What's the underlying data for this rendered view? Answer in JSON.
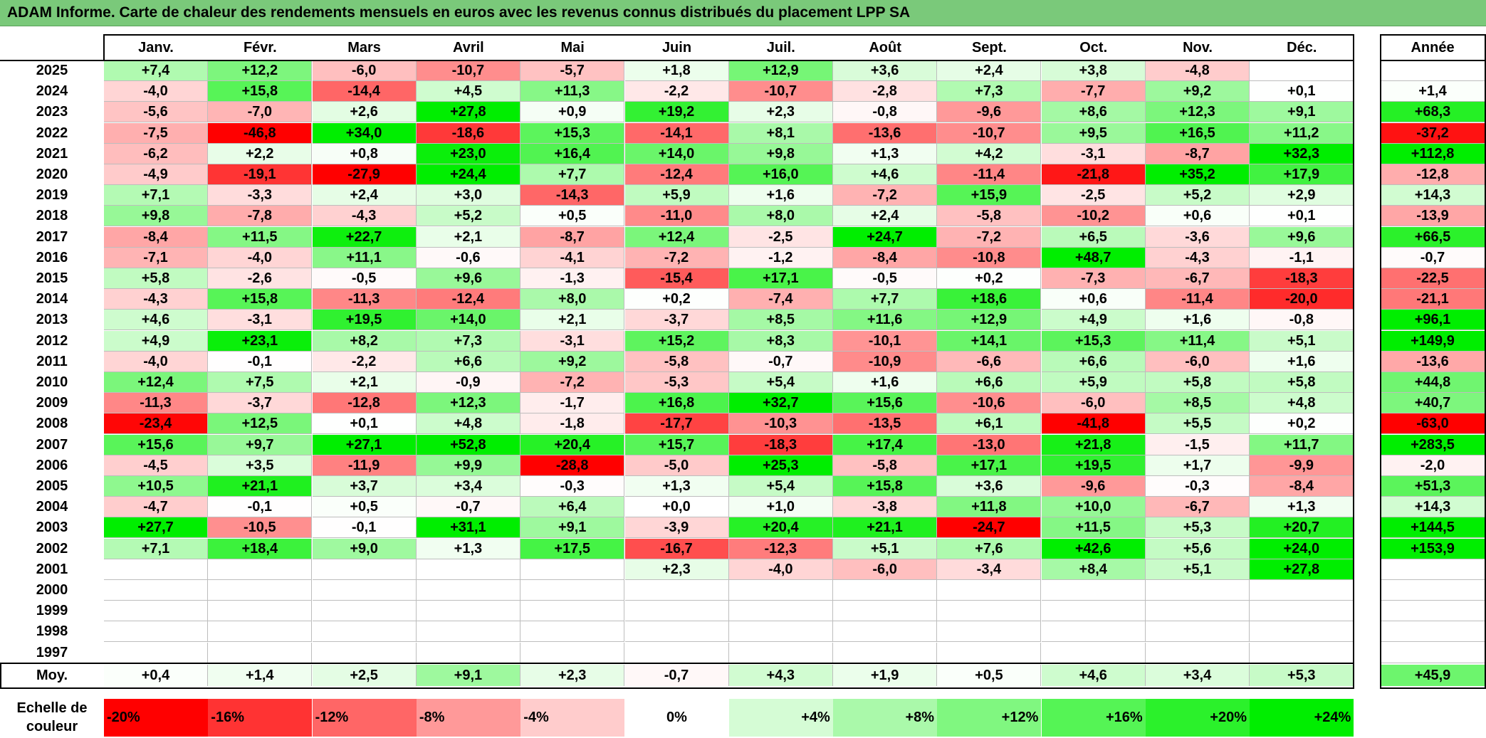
{
  "title": "ADAM Informe. Carte de chaleur des rendements mensuels en euros avec les revenus connus distribués du placement LPP SA",
  "chart_data": {
    "type": "heatmap",
    "title": "ADAM Informe. Carte de chaleur des rendements mensuels en euros avec les revenus connus distribués du placement LPP SA",
    "months": [
      "Janv.",
      "Févr.",
      "Mars",
      "Avril",
      "Mai",
      "Juin",
      "Juil.",
      "Août",
      "Sept.",
      "Oct.",
      "Nov.",
      "Déc."
    ],
    "year_header": "Année",
    "rows": [
      {
        "year": "2025",
        "values": [
          "+7,4",
          "+12,2",
          "-6,0",
          "-10,7",
          "-5,7",
          "+1,8",
          "+12,9",
          "+3,6",
          "+2,4",
          "+3,8",
          "-4,8",
          ""
        ],
        "annual": ""
      },
      {
        "year": "2024",
        "values": [
          "-4,0",
          "+15,8",
          "-14,4",
          "+4,5",
          "+11,3",
          "-2,2",
          "-10,7",
          "-2,8",
          "+7,3",
          "-7,7",
          "+9,2",
          "+0,1"
        ],
        "annual": "+1,4"
      },
      {
        "year": "2023",
        "values": [
          "-5,6",
          "-7,0",
          "+2,6",
          "+27,8",
          "+0,9",
          "+19,2",
          "+2,3",
          "-0,8",
          "-9,6",
          "+8,6",
          "+12,3",
          "+9,1"
        ],
        "annual": "+68,3"
      },
      {
        "year": "2022",
        "values": [
          "-7,5",
          "-46,8",
          "+34,0",
          "-18,6",
          "+15,3",
          "-14,1",
          "+8,1",
          "-13,6",
          "-10,7",
          "+9,5",
          "+16,5",
          "+11,2"
        ],
        "annual": "-37,2"
      },
      {
        "year": "2021",
        "values": [
          "-6,2",
          "+2,2",
          "+0,8",
          "+23,0",
          "+16,4",
          "+14,0",
          "+9,8",
          "+1,3",
          "+4,2",
          "-3,1",
          "-8,7",
          "+32,3"
        ],
        "annual": "+112,8"
      },
      {
        "year": "2020",
        "values": [
          "-4,9",
          "-19,1",
          "-27,9",
          "+24,4",
          "+7,7",
          "-12,4",
          "+16,0",
          "+4,6",
          "-11,4",
          "-21,8",
          "+35,2",
          "+17,9"
        ],
        "annual": "-12,8"
      },
      {
        "year": "2019",
        "values": [
          "+7,1",
          "-3,3",
          "+2,4",
          "+3,0",
          "-14,3",
          "+5,9",
          "+1,6",
          "-7,2",
          "+15,9",
          "-2,5",
          "+5,2",
          "+2,9"
        ],
        "annual": "+14,3"
      },
      {
        "year": "2018",
        "values": [
          "+9,8",
          "-7,8",
          "-4,3",
          "+5,2",
          "+0,5",
          "-11,0",
          "+8,0",
          "+2,4",
          "-5,8",
          "-10,2",
          "+0,6",
          "+0,1"
        ],
        "annual": "-13,9"
      },
      {
        "year": "2017",
        "values": [
          "-8,4",
          "+11,5",
          "+22,7",
          "+2,1",
          "-8,7",
          "+12,4",
          "-2,5",
          "+24,7",
          "-7,2",
          "+6,5",
          "-3,6",
          "+9,6"
        ],
        "annual": "+66,5"
      },
      {
        "year": "2016",
        "values": [
          "-7,1",
          "-4,0",
          "+11,1",
          "-0,6",
          "-4,1",
          "-7,2",
          "-1,2",
          "-8,4",
          "-10,8",
          "+48,7",
          "-4,3",
          "-1,1"
        ],
        "annual": "-0,7"
      },
      {
        "year": "2015",
        "values": [
          "+5,8",
          "-2,6",
          "-0,5",
          "+9,6",
          "-1,3",
          "-15,4",
          "+17,1",
          "-0,5",
          "+0,2",
          "-7,3",
          "-6,7",
          "-18,3"
        ],
        "annual": "-22,5"
      },
      {
        "year": "2014",
        "values": [
          "-4,3",
          "+15,8",
          "-11,3",
          "-12,4",
          "+8,0",
          "+0,2",
          "-7,4",
          "+7,7",
          "+18,6",
          "+0,6",
          "-11,4",
          "-20,0"
        ],
        "annual": "-21,1"
      },
      {
        "year": "2013",
        "values": [
          "+4,6",
          "-3,1",
          "+19,5",
          "+14,0",
          "+2,1",
          "-3,7",
          "+8,5",
          "+11,6",
          "+12,9",
          "+4,9",
          "+1,6",
          "-0,8"
        ],
        "annual": "+96,1"
      },
      {
        "year": "2012",
        "values": [
          "+4,9",
          "+23,1",
          "+8,2",
          "+7,3",
          "-3,1",
          "+15,2",
          "+8,3",
          "-10,1",
          "+14,1",
          "+15,3",
          "+11,4",
          "+5,1"
        ],
        "annual": "+149,9"
      },
      {
        "year": "2011",
        "values": [
          "-4,0",
          "-0,1",
          "-2,2",
          "+6,6",
          "+9,2",
          "-5,8",
          "-0,7",
          "-10,9",
          "-6,6",
          "+6,6",
          "-6,0",
          "+1,6"
        ],
        "annual": "-13,6"
      },
      {
        "year": "2010",
        "values": [
          "+12,4",
          "+7,5",
          "+2,1",
          "-0,9",
          "-7,2",
          "-5,3",
          "+5,4",
          "+1,6",
          "+6,6",
          "+5,9",
          "+5,8",
          "+5,8"
        ],
        "annual": "+44,8"
      },
      {
        "year": "2009",
        "values": [
          "-11,3",
          "-3,7",
          "-12,8",
          "+12,3",
          "-1,7",
          "+16,8",
          "+32,7",
          "+15,6",
          "-10,6",
          "-6,0",
          "+8,5",
          "+4,8"
        ],
        "annual": "+40,7"
      },
      {
        "year": "2008",
        "values": [
          "-23,4",
          "+12,5",
          "+0,1",
          "+4,8",
          "-1,8",
          "-17,7",
          "-10,3",
          "-13,5",
          "+6,1",
          "-41,8",
          "+5,5",
          "+0,2"
        ],
        "annual": "-63,0"
      },
      {
        "year": "2007",
        "values": [
          "+15,6",
          "+9,7",
          "+27,1",
          "+52,8",
          "+20,4",
          "+15,7",
          "-18,3",
          "+17,4",
          "-13,0",
          "+21,8",
          "-1,5",
          "+11,7"
        ],
        "annual": "+283,5"
      },
      {
        "year": "2006",
        "values": [
          "-4,5",
          "+3,5",
          "-11,9",
          "+9,9",
          "-28,8",
          "-5,0",
          "+25,3",
          "-5,8",
          "+17,1",
          "+19,5",
          "+1,7",
          "-9,9"
        ],
        "annual": "-2,0"
      },
      {
        "year": "2005",
        "values": [
          "+10,5",
          "+21,1",
          "+3,7",
          "+3,4",
          "-0,3",
          "+1,3",
          "+5,4",
          "+15,8",
          "+3,6",
          "-9,6",
          "-0,3",
          "-8,4"
        ],
        "annual": "+51,3"
      },
      {
        "year": "2004",
        "values": [
          "-4,7",
          "-0,1",
          "+0,5",
          "-0,7",
          "+6,4",
          "+0,0",
          "+1,0",
          "-3,8",
          "+11,8",
          "+10,0",
          "-6,7",
          "+1,3"
        ],
        "annual": "+14,3"
      },
      {
        "year": "2003",
        "values": [
          "+27,7",
          "-10,5",
          "-0,1",
          "+31,1",
          "+9,1",
          "-3,9",
          "+20,4",
          "+21,1",
          "-24,7",
          "+11,5",
          "+5,3",
          "+20,7"
        ],
        "annual": "+144,5"
      },
      {
        "year": "2002",
        "values": [
          "+7,1",
          "+18,4",
          "+9,0",
          "+1,3",
          "+17,5",
          "-16,7",
          "-12,3",
          "+5,1",
          "+7,6",
          "+42,6",
          "+5,6",
          "+24,0"
        ],
        "annual": "+153,9"
      },
      {
        "year": "2001",
        "values": [
          "",
          "",
          "",
          "",
          "",
          "+2,3",
          "-4,0",
          "-6,0",
          "-3,4",
          "+8,4",
          "+5,1",
          "+27,8"
        ],
        "annual": ""
      },
      {
        "year": "2000",
        "values": [
          "",
          "",
          "",
          "",
          "",
          "",
          "",
          "",
          "",
          "",
          "",
          ""
        ],
        "annual": ""
      },
      {
        "year": "1999",
        "values": [
          "",
          "",
          "",
          "",
          "",
          "",
          "",
          "",
          "",
          "",
          "",
          ""
        ],
        "annual": ""
      },
      {
        "year": "1998",
        "values": [
          "",
          "",
          "",
          "",
          "",
          "",
          "",
          "",
          "",
          "",
          "",
          ""
        ],
        "annual": ""
      },
      {
        "year": "1997",
        "values": [
          "",
          "",
          "",
          "",
          "",
          "",
          "",
          "",
          "",
          "",
          "",
          ""
        ],
        "annual": ""
      }
    ],
    "average": {
      "label": "Moy.",
      "values": [
        "+0,4",
        "+1,4",
        "+2,5",
        "+9,1",
        "+2,3",
        "-0,7",
        "+4,3",
        "+1,9",
        "+0,5",
        "+4,6",
        "+3,4",
        "+5,3"
      ],
      "annual": "+45,9"
    },
    "scale": {
      "label": "Echelle de couleur",
      "steps": [
        "-20%",
        "-16%",
        "-12%",
        "-8%",
        "-4%",
        "0%",
        "+4%",
        "+8%",
        "+12%",
        "+16%",
        "+20%",
        "+24%"
      ]
    },
    "colors": {
      "negative_max": "#ff0000",
      "neutral": "#ffffff",
      "positive_max": "#00ee00",
      "title_bg": "#7ac97a"
    }
  }
}
